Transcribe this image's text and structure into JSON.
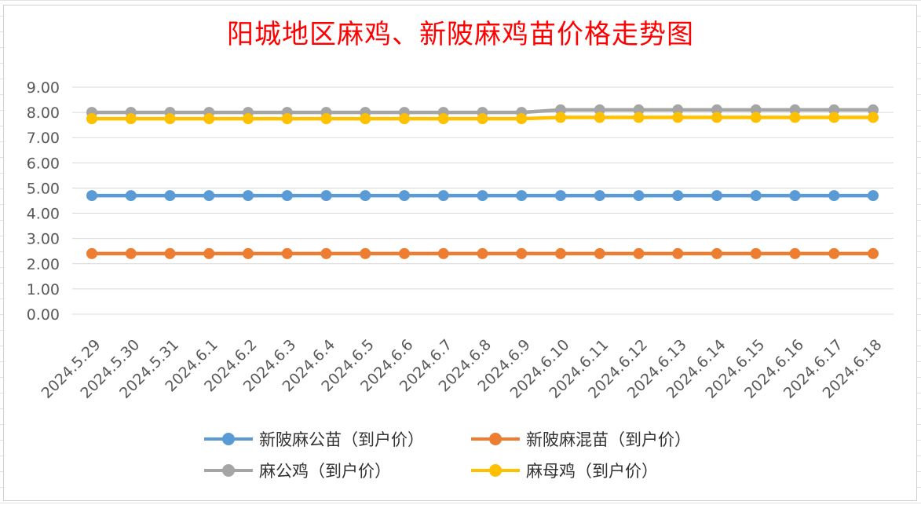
{
  "chart_data": {
    "type": "line",
    "title": "阳城地区麻鸡、新陂麻鸡苗价格走势图",
    "categories": [
      "2024.5.29",
      "2024.5.30",
      "2024.5.31",
      "2024.6.1",
      "2024.6.2",
      "2024.6.3",
      "2024.6.4",
      "2024.6.5",
      "2024.6.6",
      "2024.6.7",
      "2024.6.8",
      "2024.6.9",
      "2024.6.10",
      "2024.6.11",
      "2024.6.12",
      "2024.6.13",
      "2024.6.14",
      "2024.6.15",
      "2024.6.16",
      "2024.6.17",
      "2024.6.18"
    ],
    "ylim": [
      0,
      9
    ],
    "yticks": [
      "0.00",
      "1.00",
      "2.00",
      "3.00",
      "4.00",
      "5.00",
      "6.00",
      "7.00",
      "8.00",
      "9.00"
    ],
    "grid": true,
    "legend_position": "bottom",
    "series": [
      {
        "name": "新陂麻公苗（到户价）",
        "color": "#5b9bd5",
        "values": [
          4.7,
          4.7,
          4.7,
          4.7,
          4.7,
          4.7,
          4.7,
          4.7,
          4.7,
          4.7,
          4.7,
          4.7,
          4.7,
          4.7,
          4.7,
          4.7,
          4.7,
          4.7,
          4.7,
          4.7,
          4.7
        ]
      },
      {
        "name": "新陂麻混苗（到户价）",
        "color": "#ed7d31",
        "values": [
          2.4,
          2.4,
          2.4,
          2.4,
          2.4,
          2.4,
          2.4,
          2.4,
          2.4,
          2.4,
          2.4,
          2.4,
          2.4,
          2.4,
          2.4,
          2.4,
          2.4,
          2.4,
          2.4,
          2.4,
          2.4
        ]
      },
      {
        "name": "麻公鸡（到户价）",
        "color": "#a5a5a5",
        "values": [
          8.0,
          8.0,
          8.0,
          8.0,
          8.0,
          8.0,
          8.0,
          8.0,
          8.0,
          8.0,
          8.0,
          8.0,
          8.1,
          8.1,
          8.1,
          8.1,
          8.1,
          8.1,
          8.1,
          8.1,
          8.1
        ]
      },
      {
        "name": "麻母鸡（到户价）",
        "color": "#ffc000",
        "values": [
          7.75,
          7.75,
          7.75,
          7.75,
          7.75,
          7.75,
          7.75,
          7.75,
          7.75,
          7.75,
          7.75,
          7.75,
          7.8,
          7.8,
          7.8,
          7.8,
          7.8,
          7.8,
          7.8,
          7.8,
          7.8
        ]
      }
    ]
  }
}
